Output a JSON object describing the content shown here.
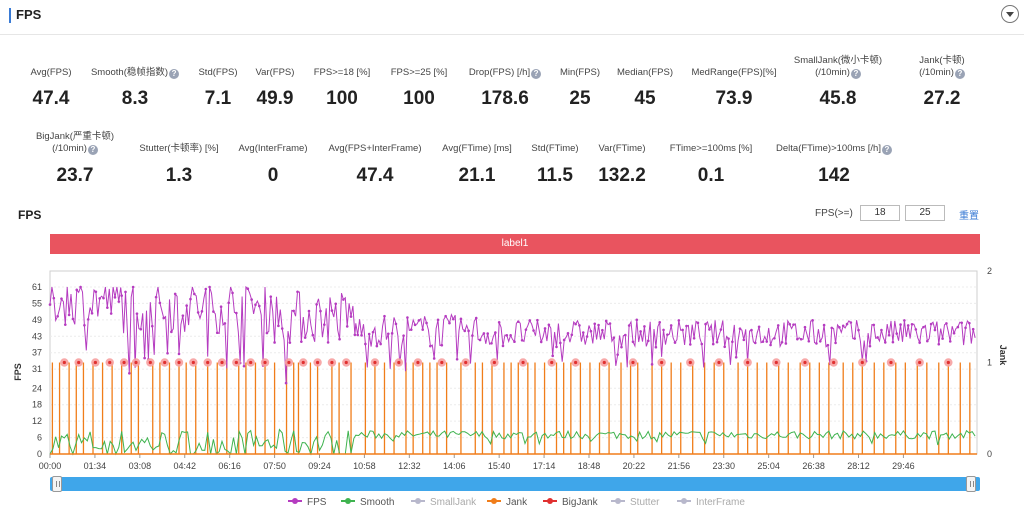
{
  "header": {
    "title": "FPS"
  },
  "metrics_row1": [
    {
      "label": "Avg(FPS)",
      "value": "47.4",
      "help": false
    },
    {
      "label": "Smooth(稳帧指数)",
      "value": "8.3",
      "help": true
    },
    {
      "label": "Std(FPS)",
      "value": "7.1",
      "help": false
    },
    {
      "label": "Var(FPS)",
      "value": "49.9",
      "help": false
    },
    {
      "label": "FPS>=18 [%]",
      "value": "100",
      "help": false
    },
    {
      "label": "FPS>=25 [%]",
      "value": "100",
      "help": false
    },
    {
      "label": "Drop(FPS) [/h]",
      "value": "178.6",
      "help": true
    },
    {
      "label": "Min(FPS)",
      "value": "25",
      "help": false
    },
    {
      "label": "Median(FPS)",
      "value": "45",
      "help": false
    },
    {
      "label": "MedRange(FPS)[%]",
      "value": "73.9",
      "help": false
    },
    {
      "label": "SmallJank(微小卡顿)",
      "label2": "(/10min)",
      "value": "45.8",
      "help": true
    },
    {
      "label": "Jank(卡顿)",
      "label2": "(/10min)",
      "value": "27.2",
      "help": true
    }
  ],
  "metrics_row2": [
    {
      "label": "BigJank(严重卡顿)",
      "label2": "(/10min)",
      "value": "23.7",
      "help": true
    },
    {
      "label": "Stutter(卡顿率) [%]",
      "value": "1.3",
      "help": false
    },
    {
      "label": "Avg(InterFrame)",
      "value": "0",
      "help": false
    },
    {
      "label": "Avg(FPS+InterFrame)",
      "value": "47.4",
      "help": false
    },
    {
      "label": "Avg(FTime) [ms]",
      "value": "21.1",
      "help": false
    },
    {
      "label": "Std(FTime)",
      "value": "11.5",
      "help": false
    },
    {
      "label": "Var(FTime)",
      "value": "132.2",
      "help": false
    },
    {
      "label": "FTime>=100ms [%]",
      "value": "0.1",
      "help": false
    },
    {
      "label": "Delta(FTime)>100ms [/h]",
      "value": "142",
      "help": true
    }
  ],
  "controls": {
    "chart_title": "FPS",
    "fps_threshold_label": "FPS(>=)",
    "threshold_1": "18",
    "threshold_2": "25",
    "reset_label": "重置",
    "label_bar": "label1"
  },
  "legend": [
    {
      "name": "FPS",
      "color": "#b53cc0",
      "active": true
    },
    {
      "name": "Smooth",
      "color": "#3fb34f",
      "active": true
    },
    {
      "name": "SmallJank",
      "color": "#b8b8cc",
      "active": false
    },
    {
      "name": "Jank",
      "color": "#f07d1a",
      "active": true
    },
    {
      "name": "BigJank",
      "color": "#e03030",
      "active": true
    },
    {
      "name": "Stutter",
      "color": "#b8b8cc",
      "active": false
    },
    {
      "name": "InterFrame",
      "color": "#b8b8cc",
      "active": false
    }
  ],
  "chart_data": {
    "type": "line",
    "title": "FPS",
    "ylabel": "FPS",
    "y2label": "Jank",
    "ylim": [
      0,
      61
    ],
    "y2lim": [
      0,
      2
    ],
    "yticks": [
      0,
      6,
      12,
      18,
      24,
      31,
      37,
      43,
      49,
      55,
      61
    ],
    "y2ticks": [
      0,
      1,
      2
    ],
    "xlim_seconds": [
      0,
      1940
    ],
    "xticks": [
      "00:00",
      "01:34",
      "03:08",
      "04:42",
      "06:16",
      "07:50",
      "09:24",
      "10:58",
      "12:32",
      "14:06",
      "15:40",
      "17:14",
      "18:48",
      "20:22",
      "21:56",
      "23:30",
      "25:04",
      "26:38",
      "28:12",
      "29:46"
    ],
    "xtick_seconds": [
      0,
      94,
      188,
      282,
      376,
      470,
      564,
      658,
      752,
      846,
      940,
      1034,
      1128,
      1222,
      1316,
      1410,
      1504,
      1598,
      1692,
      1786
    ],
    "series": [
      {
        "name": "FPS",
        "color": "#b53cc0",
        "axis": "left",
        "segments": [
          {
            "from": 0,
            "to": 150,
            "level": 56,
            "spread": 9
          },
          {
            "from": 150,
            "to": 470,
            "level": 54,
            "spread": 10
          },
          {
            "from": 470,
            "to": 640,
            "level": 50,
            "spread": 10
          },
          {
            "from": 640,
            "to": 900,
            "level": 45,
            "spread": 6
          },
          {
            "from": 900,
            "to": 1940,
            "level": 44,
            "spread": 5
          }
        ],
        "note": "values sampled approximately around the segment levels"
      },
      {
        "name": "Smooth",
        "color": "#3fb34f",
        "axis": "left",
        "segments": [
          {
            "from": 0,
            "to": 640,
            "level": 4,
            "spread": 5
          },
          {
            "from": 640,
            "to": 1940,
            "level": 7,
            "spread": 1.5
          }
        ]
      },
      {
        "name": "Jank",
        "color": "#f07d1a",
        "axis": "right",
        "value": 1
      },
      {
        "name": "BigJank",
        "color": "#e03030",
        "axis": "right",
        "value": 1
      }
    ],
    "jank_times": [
      5,
      20,
      40,
      55,
      70,
      90,
      110,
      130,
      150,
      170,
      185,
      215,
      230,
      250,
      270,
      285,
      305,
      330,
      350,
      370,
      395,
      410,
      430,
      450,
      470,
      495,
      510,
      520,
      545,
      560,
      590,
      605,
      630,
      660,
      680,
      700,
      720,
      745,
      760,
      780,
      795,
      810,
      830,
      860,
      890,
      905,
      925,
      950,
      965,
      980,
      1000,
      1015,
      1035,
      1060,
      1075,
      1090,
      1110,
      1130,
      1150,
      1170,
      1195,
      1215,
      1230,
      1260,
      1280,
      1300,
      1320,
      1345,
      1370,
      1390,
      1410,
      1440,
      1460,
      1480,
      1500,
      1525,
      1545,
      1570,
      1590,
      1610,
      1630,
      1660,
      1680,
      1700,
      1725,
      1745,
      1770,
      1790,
      1815,
      1835,
      1860,
      1880,
      1905,
      1925
    ],
    "bigjank_times": [
      30,
      60,
      95,
      125,
      155,
      180,
      210,
      240,
      270,
      300,
      330,
      360,
      390,
      420,
      450,
      500,
      530,
      560,
      590,
      620,
      680,
      730,
      770,
      820,
      870,
      930,
      990,
      1050,
      1100,
      1160,
      1220,
      1280,
      1340,
      1400,
      1460,
      1520,
      1580,
      1640,
      1700,
      1760,
      1820,
      1880
    ]
  }
}
